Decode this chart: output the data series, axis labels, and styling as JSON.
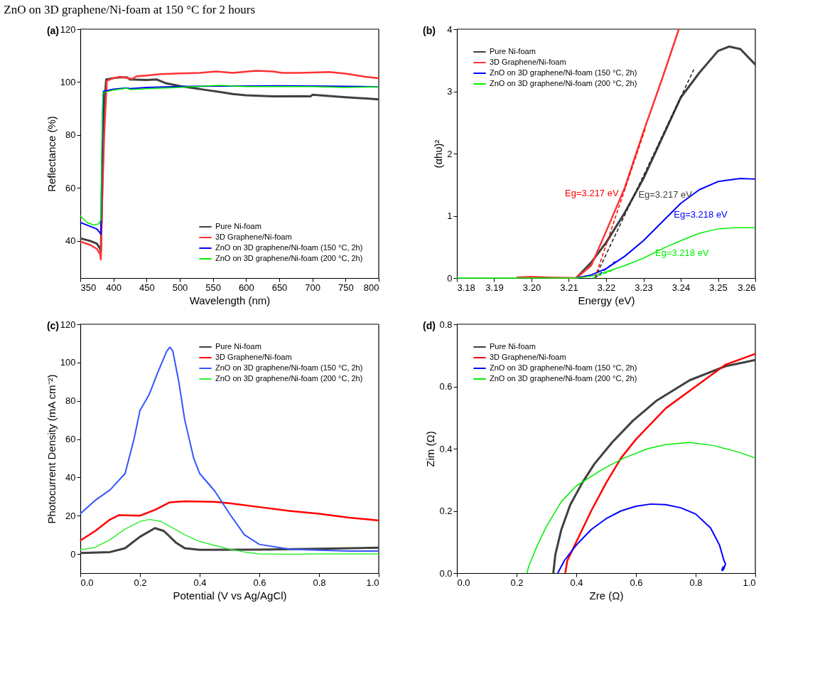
{
  "chart_data": [
    {
      "type": "line",
      "title": "ZnO on 3D graphene/Ni-foam at 150 °C for 2 hours",
      "annotations": [
        "(a)"
      ],
      "xlabel": "Wavelength (nm)",
      "ylabel": "Reflectance (%)",
      "xlim": [
        350,
        800
      ],
      "ylim": [
        26,
        120
      ],
      "xticks": [
        350,
        400,
        450,
        500,
        550,
        600,
        650,
        700,
        750,
        800
      ],
      "yticks": [
        40,
        60,
        80,
        100,
        120
      ],
      "grid": false,
      "legend": "bottom right",
      "series": [
        {
          "name": "Pure Ni-foam",
          "color": "#404040",
          "x": [
            350,
            365,
            375,
            380,
            381,
            383,
            386,
            389,
            400,
            410,
            420,
            425,
            450,
            465,
            470,
            480,
            500,
            520,
            540,
            560,
            580,
            600,
            640,
            680,
            697,
            700,
            750,
            800
          ],
          "values": [
            41,
            40,
            39,
            37,
            36,
            60,
            90,
            101,
            101.5,
            101.8,
            101.8,
            101,
            100.8,
            101,
            100.5,
            99.5,
            98.5,
            97.8,
            97,
            96.3,
            95.5,
            95,
            94.6,
            94.7,
            94.6,
            95.2,
            94.3,
            93.5
          ]
        },
        {
          "name": "3D Graphene/Ni-foam",
          "color": "#ff3333",
          "x": [
            350,
            365,
            375,
            380,
            381,
            383,
            386,
            390,
            400,
            410,
            420,
            428,
            435,
            450,
            470,
            500,
            530,
            555,
            580,
            615,
            640,
            655,
            680,
            700,
            725,
            750,
            780,
            800
          ],
          "values": [
            39.8,
            38.5,
            37,
            35,
            33,
            55,
            80,
            100.5,
            101.5,
            102,
            101.6,
            101.2,
            102.2,
            102.5,
            103,
            103.3,
            103.5,
            104,
            103.5,
            104.3,
            104,
            103.5,
            103.5,
            103.6,
            103.8,
            103.2,
            102,
            101.5
          ]
        },
        {
          "name": "ZnO on 3D graphene/Ni-foam (150 °C, 2h)",
          "color": "#0000ff",
          "x": [
            350,
            365,
            375,
            380,
            381,
            382,
            384,
            385,
            400,
            420,
            425,
            450,
            500,
            550,
            600,
            650,
            700,
            750,
            800
          ],
          "values": [
            47,
            45.5,
            44.5,
            43,
            42.5,
            60,
            90,
            96.5,
            97.3,
            97.8,
            97.5,
            98,
            98.3,
            98.5,
            98.5,
            98.6,
            98.5,
            98.4,
            98.2
          ]
        },
        {
          "name": "ZnO on 3D graphene/Ni-foam (200 °C, 2h)",
          "color": "#00ee00",
          "x": [
            350,
            360,
            370,
            378,
            381,
            382,
            384,
            400,
            420,
            425,
            450,
            500,
            560,
            600,
            700,
            750,
            800
          ],
          "values": [
            49.5,
            47,
            46,
            46.5,
            48,
            70,
            96,
            97,
            97.7,
            97.2,
            97.5,
            98,
            98.8,
            98.3,
            98.3,
            98,
            98.2
          ]
        }
      ]
    },
    {
      "type": "line",
      "annotations": [
        "(b)",
        {
          "text": "Eg=3.217 eV",
          "x": 3.2245,
          "y": 1.34
        },
        {
          "text": "Eg=3.217 eV",
          "x": 3.2275,
          "y": 1.32
        },
        {
          "text": "Eg=3.218 eV",
          "x": 3.237,
          "y": 1.0
        },
        {
          "text": "Eg=3.218 eV",
          "x": 3.232,
          "y": 0.38
        }
      ],
      "xlabel": "Energy (eV)",
      "ylabel": "(αhυ)²",
      "xlim": [
        3.18,
        3.26
      ],
      "ylim": [
        0,
        4
      ],
      "xticks": [
        3.18,
        3.19,
        {
          "value": 3.2,
          "label": "3.20"
        },
        3.21,
        3.22,
        3.23,
        3.24,
        3.25,
        3.26
      ],
      "yticks": [
        0,
        1,
        2,
        3,
        4
      ],
      "grid": false,
      "legend": "top left",
      "series": [
        {
          "name": "Pure Ni-foam",
          "color": "#404040",
          "x": [
            3.212,
            3.216,
            3.22,
            3.225,
            3.23,
            3.235,
            3.24,
            3.245,
            3.25,
            3.253,
            3.256,
            3.26
          ],
          "values": [
            0,
            0.25,
            0.57,
            1.05,
            1.6,
            2.25,
            2.9,
            3.3,
            3.65,
            3.72,
            3.68,
            3.43
          ]
        },
        {
          "name": "3D Graphene/Ni-foam",
          "color": "#ff3333",
          "x": [
            3.196,
            3.2,
            3.204,
            3.212,
            3.216,
            3.22,
            3.225,
            3.23,
            3.235,
            3.2395
          ],
          "values": [
            0.01,
            0.02,
            0.01,
            0,
            0.2,
            0.75,
            1.45,
            2.35,
            3.2,
            4
          ]
        },
        {
          "name": "ZnO on 3D graphene/Ni-foam (150 °C, 2h)",
          "color": "#0000ff",
          "x": [
            3.212,
            3.216,
            3.22,
            3.225,
            3.23,
            3.235,
            3.24,
            3.245,
            3.25,
            3.256,
            3.26
          ],
          "values": [
            0,
            0.05,
            0.15,
            0.35,
            0.6,
            0.9,
            1.2,
            1.42,
            1.55,
            1.6,
            1.59
          ]
        },
        {
          "name": "ZnO on 3D graphene/Ni-foam (200 °C, 2h)",
          "color": "#00ee00",
          "x": [
            3.18,
            3.212,
            3.216,
            3.22,
            3.225,
            3.23,
            3.235,
            3.24,
            3.245,
            3.25,
            3.255,
            3.26
          ],
          "values": [
            0,
            0,
            0.03,
            0.1,
            0.2,
            0.32,
            0.47,
            0.6,
            0.72,
            0.79,
            0.81,
            0.81
          ]
        },
        {
          "type": "line",
          "line_style": "dashed",
          "color": "#222222",
          "x": [
            3.217,
            3.2435
          ],
          "values": [
            0,
            3.35
          ]
        },
        {
          "type": "line",
          "line_style": "dashed",
          "color": "#ff0000",
          "x": [
            3.217,
            3.2305
          ],
          "values": [
            0,
            2.4
          ]
        },
        {
          "type": "line",
          "line_style": "dashed",
          "color": "#0000ff",
          "x": [
            3.217,
            3.2225
          ],
          "values": [
            0,
            0.27
          ]
        },
        {
          "type": "line",
          "line_style": "dashed",
          "color": "#00ee00",
          "x": [
            3.2165,
            3.222
          ],
          "values": [
            0,
            0.13
          ]
        }
      ]
    },
    {
      "type": "line",
      "annotations": [
        "(c)"
      ],
      "xlabel": "Potential (V vs Ag/AgCl)",
      "ylabel": "Photocurrent Density (mA cm⁻²)",
      "xlim": [
        0,
        1
      ],
      "ylim": [
        -10,
        120
      ],
      "xticks": [
        {
          "value": 0,
          "label": "0.0"
        },
        0.2,
        0.4,
        0.6,
        0.8,
        {
          "value": 1,
          "label": "1.0"
        }
      ],
      "yticks": [
        0,
        20,
        40,
        60,
        80,
        100,
        120
      ],
      "grid": false,
      "legend": "top right",
      "series": [
        {
          "name": "Pure Ni-foam",
          "color": "#404040",
          "x": [
            0,
            0.1,
            0.15,
            0.2,
            0.25,
            0.28,
            0.32,
            0.35,
            0.4,
            0.6,
            0.8,
            1.0
          ],
          "values": [
            0.5,
            1,
            3,
            9,
            13.5,
            12,
            6,
            3,
            2.2,
            2.3,
            2.7,
            3.3
          ]
        },
        {
          "name": "3D Graphene/Ni-foam",
          "color": "#ff0000",
          "x": [
            0,
            0.05,
            0.1,
            0.13,
            0.2,
            0.25,
            0.3,
            0.35,
            0.45,
            0.5,
            0.6,
            0.7,
            0.8,
            0.9,
            1.0
          ],
          "values": [
            7,
            12,
            18,
            20.3,
            20,
            23,
            27,
            27.5,
            27.2,
            26.5,
            24.5,
            22.5,
            21,
            19,
            17.5
          ]
        },
        {
          "name": "ZnO on 3D graphene/Ni-foam (150 °C, 2h)",
          "color": "#3355ff",
          "x": [
            0,
            0.05,
            0.1,
            0.15,
            0.18,
            0.2,
            0.23,
            0.26,
            0.29,
            0.3,
            0.31,
            0.33,
            0.35,
            0.38,
            0.4,
            0.45,
            0.5,
            0.55,
            0.6,
            0.7,
            0.8,
            0.9,
            1.0
          ],
          "values": [
            21,
            28,
            33.5,
            42,
            60,
            75,
            83,
            95,
            106,
            108,
            106,
            90,
            70,
            50,
            42,
            33,
            21,
            10,
            5,
            2.5,
            2,
            1.5,
            1.5
          ]
        },
        {
          "name": "ZnO on 3D graphene/Ni-foam (200 °C, 2h)",
          "color": "#33ee33",
          "x": [
            0,
            0.05,
            0.1,
            0.15,
            0.2,
            0.23,
            0.27,
            0.3,
            0.35,
            0.4,
            0.45,
            0.5,
            0.55,
            0.6,
            0.7,
            0.8,
            1.0
          ],
          "values": [
            2.2,
            3.5,
            7.5,
            13,
            17,
            18,
            17,
            14.5,
            10,
            6.5,
            4.5,
            2.5,
            1,
            0,
            -0.2,
            0,
            0
          ]
        }
      ]
    },
    {
      "type": "line",
      "annotations": [
        "(d)"
      ],
      "xlabel": "Zre (Ω)",
      "ylabel": "Zim (Ω)",
      "xlim": [
        0,
        1
      ],
      "ylim": [
        0,
        0.8
      ],
      "xticks": [
        {
          "value": 0,
          "label": "0.0"
        },
        0.2,
        0.4,
        0.6,
        0.8,
        {
          "value": 1,
          "label": "1.0"
        }
      ],
      "yticks": [
        {
          "value": 0,
          "label": "0.0"
        },
        0.2,
        0.4,
        0.6,
        0.8
      ],
      "grid": false,
      "legend": "top left",
      "series": [
        {
          "name": "Pure Ni-foam",
          "color": "#404040",
          "x": [
            0.323,
            0.33,
            0.35,
            0.38,
            0.42,
            0.46,
            0.52,
            0.59,
            0.67,
            0.78,
            0.9,
            1.0
          ],
          "values": [
            0,
            0.06,
            0.14,
            0.22,
            0.29,
            0.35,
            0.42,
            0.49,
            0.555,
            0.62,
            0.665,
            0.685
          ]
        },
        {
          "name": "3D Graphene/Ni-foam",
          "color": "#ff0000",
          "x": [
            0.363,
            0.37,
            0.4,
            0.45,
            0.5,
            0.55,
            0.6,
            0.7,
            0.8,
            0.9,
            1.0
          ],
          "values": [
            0,
            0.04,
            0.1,
            0.2,
            0.29,
            0.37,
            0.43,
            0.53,
            0.6,
            0.67,
            0.705
          ]
        },
        {
          "name": "ZnO on 3D graphene/Ni-foam (150 °C, 2h)",
          "color": "#0000ff",
          "x": [
            0.338,
            0.36,
            0.4,
            0.45,
            0.5,
            0.55,
            0.6,
            0.65,
            0.7,
            0.75,
            0.8,
            0.85,
            0.88,
            0.895,
            0.9,
            0.895,
            0.89,
            0.888,
            0.892,
            0.897
          ],
          "values": [
            0,
            0.04,
            0.09,
            0.14,
            0.175,
            0.2,
            0.215,
            0.222,
            0.22,
            0.21,
            0.19,
            0.145,
            0.09,
            0.04,
            0.03,
            0.015,
            0.008,
            0.01,
            0.02,
            0.02
          ]
        },
        {
          "name": "ZnO on 3D graphene/Ni-foam (200 °C, 2h)",
          "color": "#00ee00",
          "x": [
            0.235,
            0.24,
            0.27,
            0.3,
            0.35,
            0.4,
            0.49,
            0.56,
            0.64,
            0.7,
            0.78,
            0.86,
            0.94,
            1.0
          ],
          "values": [
            0,
            0.02,
            0.09,
            0.15,
            0.23,
            0.28,
            0.335,
            0.37,
            0.4,
            0.413,
            0.42,
            0.41,
            0.39,
            0.37
          ]
        }
      ]
    }
  ]
}
